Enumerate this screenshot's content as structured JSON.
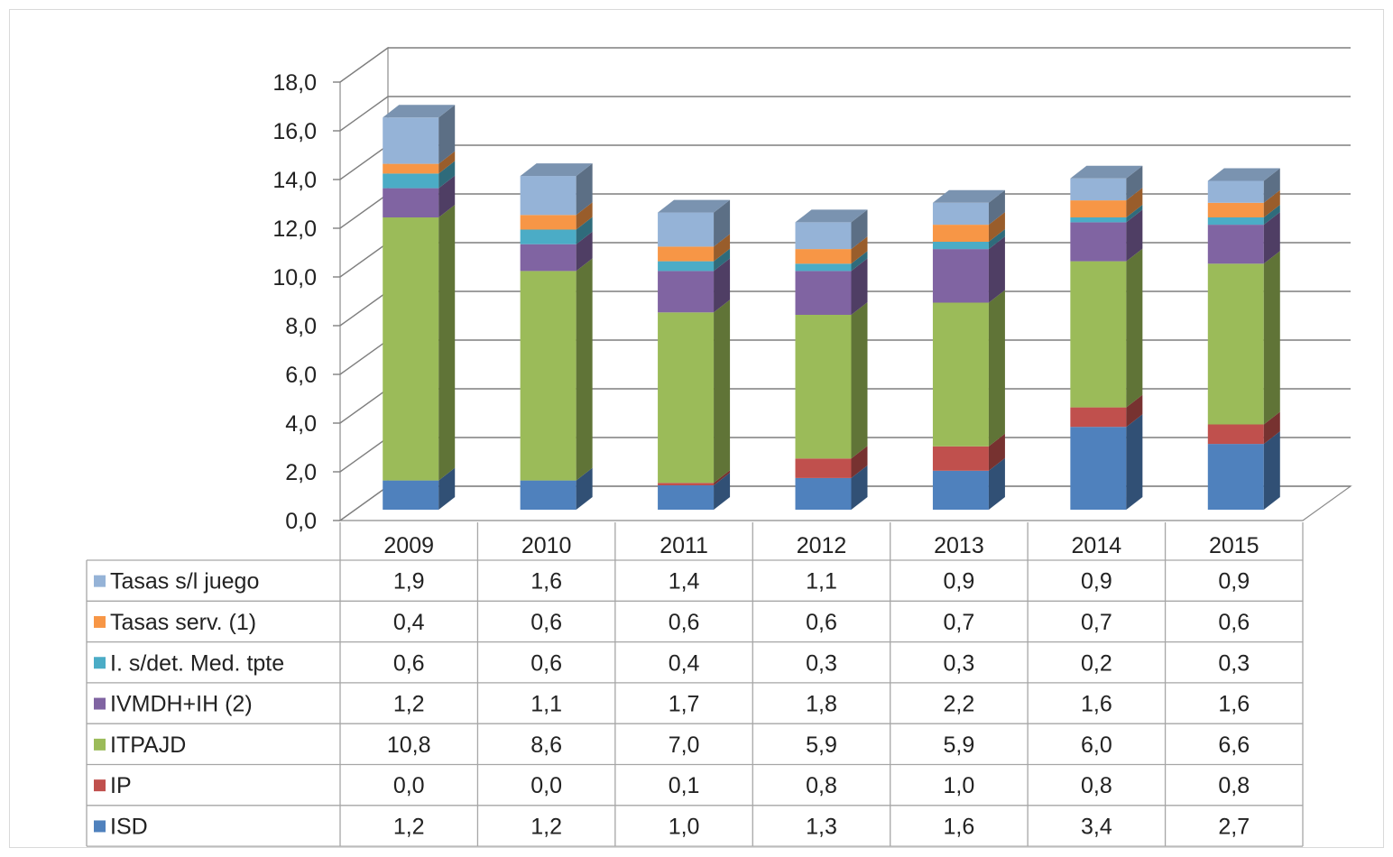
{
  "chart_data": {
    "type": "bar",
    "stacked": true,
    "three_d": true,
    "categories": [
      "2009",
      "2010",
      "2011",
      "2012",
      "2013",
      "2014",
      "2015"
    ],
    "ylim": [
      0,
      18
    ],
    "yticks": [
      "0,0",
      "2,0",
      "4,0",
      "6,0",
      "8,0",
      "10,0",
      "12,0",
      "14,0",
      "16,0",
      "18,0"
    ],
    "grid": true,
    "legend": "data-table",
    "series": [
      {
        "name": "ISD",
        "color": "#4f81bd",
        "values": [
          1.2,
          1.2,
          1.0,
          1.3,
          1.6,
          3.4,
          2.7
        ],
        "labels": [
          "1,2",
          "1,2",
          "1,0",
          "1,3",
          "1,6",
          "3,4",
          "2,7"
        ]
      },
      {
        "name": "IP",
        "color": "#c0504d",
        "values": [
          0.0,
          0.0,
          0.1,
          0.8,
          1.0,
          0.8,
          0.8
        ],
        "labels": [
          "0,0",
          "0,0",
          "0,1",
          "0,8",
          "1,0",
          "0,8",
          "0,8"
        ]
      },
      {
        "name": "ITPAJD",
        "color": "#9bbb59",
        "values": [
          10.8,
          8.6,
          7.0,
          5.9,
          5.9,
          6.0,
          6.6
        ],
        "labels": [
          "10,8",
          "8,6",
          "7,0",
          "5,9",
          "5,9",
          "6,0",
          "6,6"
        ]
      },
      {
        "name": "IVMDH+IH (2)",
        "color": "#8064a2",
        "values": [
          1.2,
          1.1,
          1.7,
          1.8,
          2.2,
          1.6,
          1.6
        ],
        "labels": [
          "1,2",
          "1,1",
          "1,7",
          "1,8",
          "2,2",
          "1,6",
          "1,6"
        ]
      },
      {
        "name": "I. s/det. Med. tpte",
        "color": "#4bacc6",
        "values": [
          0.6,
          0.6,
          0.4,
          0.3,
          0.3,
          0.2,
          0.3
        ],
        "labels": [
          "0,6",
          "0,6",
          "0,4",
          "0,3",
          "0,3",
          "0,2",
          "0,3"
        ]
      },
      {
        "name": "Tasas serv. (1)",
        "color": "#f79646",
        "values": [
          0.4,
          0.6,
          0.6,
          0.6,
          0.7,
          0.7,
          0.6
        ],
        "labels": [
          "0,4",
          "0,6",
          "0,6",
          "0,6",
          "0,7",
          "0,7",
          "0,6"
        ]
      },
      {
        "name": "Tasas s/l juego",
        "color": "#95b3d7",
        "values": [
          1.9,
          1.6,
          1.4,
          1.1,
          0.9,
          0.9,
          0.9
        ],
        "labels": [
          "1,9",
          "1,6",
          "1,4",
          "1,1",
          "0,9",
          "0,9",
          "0,9"
        ]
      }
    ],
    "table_row_order": [
      "Tasas s/l juego",
      "Tasas serv. (1)",
      "I. s/det. Med. tpte",
      "IVMDH+IH (2)",
      "ITPAJD",
      "IP",
      "ISD"
    ]
  }
}
